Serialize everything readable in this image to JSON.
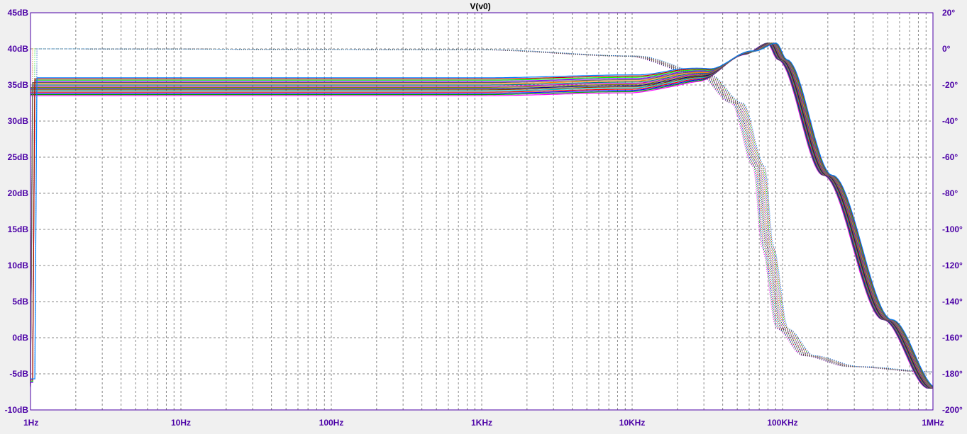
{
  "chart_data": {
    "type": "line",
    "title": "V(v0)",
    "x_axis": {
      "scale": "log",
      "range_hz": [
        1,
        1000000
      ],
      "tick_labels": [
        "1Hz",
        "10Hz",
        "100Hz",
        "1KHz",
        "10KHz",
        "100KHz",
        "1MHz"
      ],
      "tick_values_hz": [
        1,
        10,
        100,
        1000,
        10000,
        100000,
        1000000
      ]
    },
    "y_left": {
      "unit": "dB",
      "range": [
        -10,
        45
      ],
      "tick_labels": [
        "45dB",
        "40dB",
        "35dB",
        "30dB",
        "25dB",
        "20dB",
        "15dB",
        "10dB",
        "5dB",
        "0dB",
        "-5dB",
        "-10dB"
      ],
      "tick_values": [
        45,
        40,
        35,
        30,
        25,
        20,
        15,
        10,
        5,
        0,
        -5,
        -10
      ]
    },
    "y_right": {
      "unit": "degrees",
      "range": [
        -200,
        20
      ],
      "tick_labels": [
        "20°",
        "0°",
        "-20°",
        "-40°",
        "-60°",
        "-80°",
        "-100°",
        "-120°",
        "-140°",
        "-160°",
        "-180°",
        "-200°"
      ],
      "tick_values": [
        20,
        0,
        -20,
        -40,
        -60,
        -80,
        -100,
        -120,
        -140,
        -160,
        -180,
        -200
      ]
    },
    "grid": true,
    "sweep_runs": 16,
    "series": [
      {
        "role": "magnitude",
        "low_freq_db_range": [
          33.5,
          36
        ],
        "peak_freq_hz": 85000,
        "peak_db": 40.8,
        "points_nominal": [
          [
            1,
            34.7
          ],
          [
            1000,
            34.7
          ],
          [
            10000,
            35.1
          ],
          [
            30000,
            36.4
          ],
          [
            60000,
            39.5
          ],
          [
            85000,
            40.8
          ],
          [
            100000,
            38.5
          ],
          [
            200000,
            22.5
          ],
          [
            500000,
            2.5
          ],
          [
            1000000,
            -7
          ]
        ]
      },
      {
        "role": "phase",
        "points_nominal": [
          [
            1,
            0
          ],
          [
            1000,
            -0.5
          ],
          [
            10000,
            -4
          ],
          [
            30000,
            -14
          ],
          [
            50000,
            -30
          ],
          [
            70000,
            -65
          ],
          [
            80000,
            -110
          ],
          [
            100000,
            -155
          ],
          [
            150000,
            -170
          ],
          [
            300000,
            -176
          ],
          [
            1000000,
            -179
          ]
        ]
      }
    ],
    "colors": {
      "background": "#f0f0f0",
      "plot_background": "#ffffff",
      "axis_text": "#4b00a6",
      "grid": "#888888",
      "frame": "#4b00a6",
      "series_palette": [
        "#ff00ff",
        "#00a000",
        "#0000ff",
        "#ff0000",
        "#00c0c0",
        "#804000",
        "#000080",
        "#808000",
        "#c000c0",
        "#008080",
        "#ff8000",
        "#606060",
        "#8000ff",
        "#00ff00",
        "#c00000",
        "#0080ff"
      ]
    }
  }
}
